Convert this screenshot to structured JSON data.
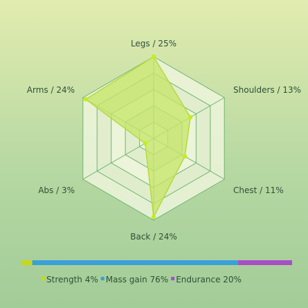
{
  "chart_data": [
    {
      "type": "radar",
      "axes": [
        {
          "name": "Legs",
          "value": 25,
          "label": "Legs / 25%"
        },
        {
          "name": "Shoulders",
          "value": 13,
          "label": "Shoulders / 13%"
        },
        {
          "name": "Chest",
          "value": 11,
          "label": "Chest / 11%"
        },
        {
          "name": "Back",
          "value": 24,
          "label": "Back / 24%"
        },
        {
          "name": "Abs",
          "value": 3,
          "label": "Abs / 3%"
        },
        {
          "name": "Arms",
          "value": 24,
          "label": "Arms / 24%"
        }
      ],
      "range": [
        0,
        25
      ],
      "rings": 5,
      "colors": {
        "grid_fill": "#edf4dc",
        "grid_stroke": "#6fb56f",
        "area_fill": "#c6e56a",
        "area_stroke": "#b5d93c",
        "point": "#c5ec1e"
      }
    },
    {
      "type": "bar",
      "orientation": "stacked-horizontal",
      "series": [
        {
          "name": "Strength",
          "value": 4,
          "label": "Strength 4%",
          "color": "#c8d61e"
        },
        {
          "name": "Mass gain",
          "value": 76,
          "label": "Mass gain 76%",
          "color": "#3aa0d8"
        },
        {
          "name": "Endurance",
          "value": 20,
          "label": "Endurance 20%",
          "color": "#a84fc8"
        }
      ]
    }
  ]
}
